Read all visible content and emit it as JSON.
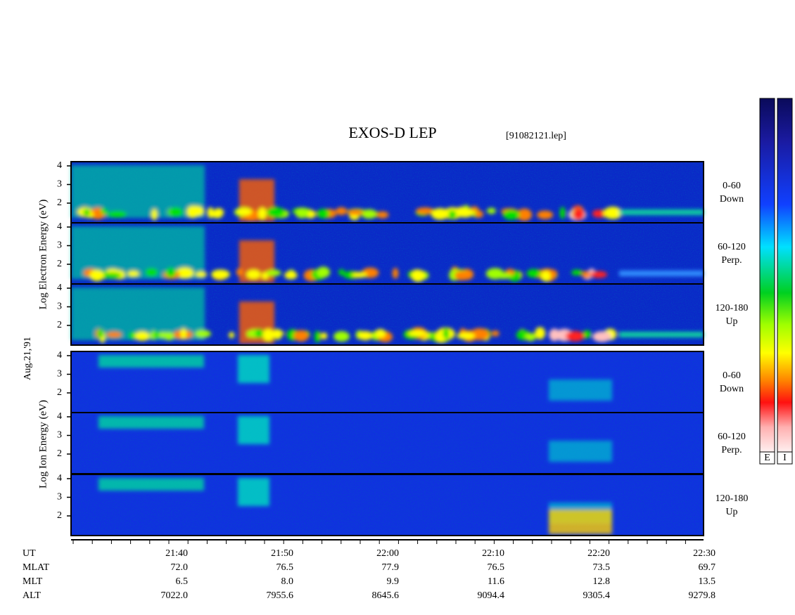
{
  "title": "EXOS-D LEP",
  "file": "[91082121.lep]",
  "date": "Aug.21,'91",
  "electron_label": "Log Electron Energy (eV)",
  "ion_label": "Log Ion Energy (eV)",
  "yticks": [
    2,
    3,
    4
  ],
  "panels": [
    {
      "range": "0-60",
      "direction": "Down"
    },
    {
      "range": "60-120",
      "direction": "Perp."
    },
    {
      "range": "120-180",
      "direction": "Up"
    },
    {
      "range": "0-60",
      "direction": "Down"
    },
    {
      "range": "60-120",
      "direction": "Perp."
    },
    {
      "range": "120-180",
      "direction": "Up"
    }
  ],
  "orbit_table": {
    "rows": [
      {
        "name": "UT",
        "values": [
          "21:40",
          "21:50",
          "22:00",
          "22:10",
          "22:20",
          "22:30"
        ]
      },
      {
        "name": "MLAT",
        "values": [
          "72.0",
          "76.5",
          "77.9",
          "76.5",
          "73.5",
          "69.7"
        ]
      },
      {
        "name": "MLT",
        "values": [
          "6.5",
          "8.0",
          "9.9",
          "11.6",
          "12.8",
          "13.5"
        ]
      },
      {
        "name": "ALT",
        "values": [
          "7022.0",
          "7955.6",
          "8645.6",
          "9094.4",
          "9305.4",
          "9279.8"
        ]
      }
    ]
  },
  "colorbars": [
    "E",
    "I"
  ]
}
